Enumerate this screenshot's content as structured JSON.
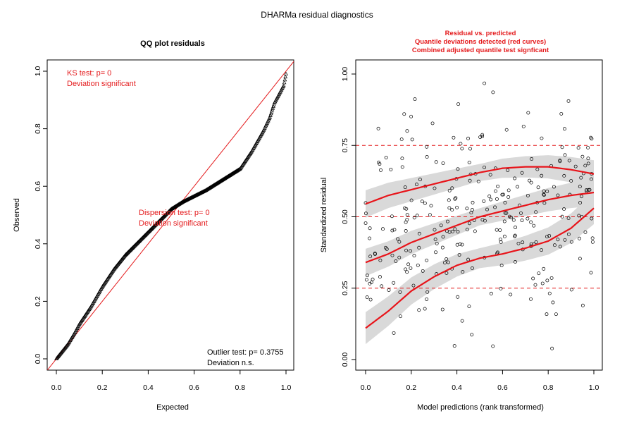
{
  "figure": {
    "title": "DHARMa residual diagnostics"
  },
  "colors": {
    "red": "#e41a1c",
    "curve_red": "#e8141a",
    "band_gray": "#d9d9d9",
    "ink": "#000000"
  },
  "chart_data": [
    {
      "type": "scatter",
      "title": "QQ plot residuals",
      "xlabel": "Expected",
      "ylabel": "Observed",
      "xlim": [
        0,
        1
      ],
      "ylim": [
        0,
        1
      ],
      "x_ticks": [
        "0.0",
        "0.2",
        "0.4",
        "0.6",
        "0.8",
        "1.0"
      ],
      "y_ticks": [
        "0.0",
        "0.2",
        "0.4",
        "0.6",
        "0.8",
        "1.0"
      ],
      "grid": false,
      "marker": "triangle",
      "reference_line": {
        "slope": 1,
        "intercept": 0,
        "color": "#e41a1c"
      },
      "qq_curve": {
        "x": [
          0.0,
          0.02,
          0.05,
          0.08,
          0.1,
          0.15,
          0.2,
          0.25,
          0.3,
          0.35,
          0.4,
          0.45,
          0.5,
          0.55,
          0.6,
          0.65,
          0.7,
          0.75,
          0.8,
          0.85,
          0.9,
          0.93,
          0.95,
          0.97,
          0.99,
          1.0
        ],
        "y": [
          0.0,
          0.02,
          0.05,
          0.09,
          0.12,
          0.18,
          0.25,
          0.31,
          0.36,
          0.4,
          0.44,
          0.48,
          0.52,
          0.545,
          0.565,
          0.585,
          0.61,
          0.635,
          0.66,
          0.72,
          0.79,
          0.84,
          0.89,
          0.92,
          0.95,
          0.99
        ]
      },
      "annotations": {
        "ks_line1": "KS test: p= 0",
        "ks_line2": "Deviation  significant",
        "disp_line1": "Dispersion test: p= 0",
        "disp_line2": "Deviation  significant",
        "outlier_line1": "Outlier test: p= 0.3755",
        "outlier_line2": "Deviation  n.s."
      }
    },
    {
      "type": "scatter",
      "title_lines": [
        "Residual vs. predicted",
        "Quantile deviations detected (red curves)",
        "Combined adjusted quantile test signficant"
      ],
      "xlabel": "Model predictions (rank transformed)",
      "ylabel": "Standardized residual",
      "xlim": [
        0,
        1
      ],
      "ylim": [
        0,
        1
      ],
      "x_ticks": [
        "0.0",
        "0.2",
        "0.4",
        "0.6",
        "0.8",
        "1.0"
      ],
      "y_ticks": [
        "0.00",
        "0.25",
        "0.50",
        "0.75",
        "1.00"
      ],
      "grid": false,
      "marker": "open-circle",
      "reference_lines": [
        0.25,
        0.5,
        0.75
      ],
      "quantile_curves": [
        {
          "quantile": 0.25,
          "x": [
            0.0,
            0.1,
            0.2,
            0.3,
            0.4,
            0.5,
            0.6,
            0.7,
            0.8,
            0.9,
            1.0
          ],
          "y": [
            0.11,
            0.17,
            0.24,
            0.29,
            0.33,
            0.355,
            0.37,
            0.39,
            0.415,
            0.46,
            0.53
          ],
          "band": 0.035
        },
        {
          "quantile": 0.5,
          "x": [
            0.0,
            0.1,
            0.2,
            0.3,
            0.4,
            0.5,
            0.6,
            0.7,
            0.8,
            0.9,
            1.0
          ],
          "y": [
            0.34,
            0.37,
            0.41,
            0.44,
            0.47,
            0.5,
            0.52,
            0.54,
            0.56,
            0.575,
            0.585
          ],
          "band": 0.03
        },
        {
          "quantile": 0.75,
          "x": [
            0.0,
            0.1,
            0.2,
            0.3,
            0.4,
            0.5,
            0.6,
            0.7,
            0.8,
            0.9,
            1.0
          ],
          "y": [
            0.545,
            0.575,
            0.595,
            0.615,
            0.635,
            0.655,
            0.67,
            0.675,
            0.675,
            0.665,
            0.65
          ],
          "band": 0.03
        }
      ],
      "n_points": 300
    }
  ]
}
